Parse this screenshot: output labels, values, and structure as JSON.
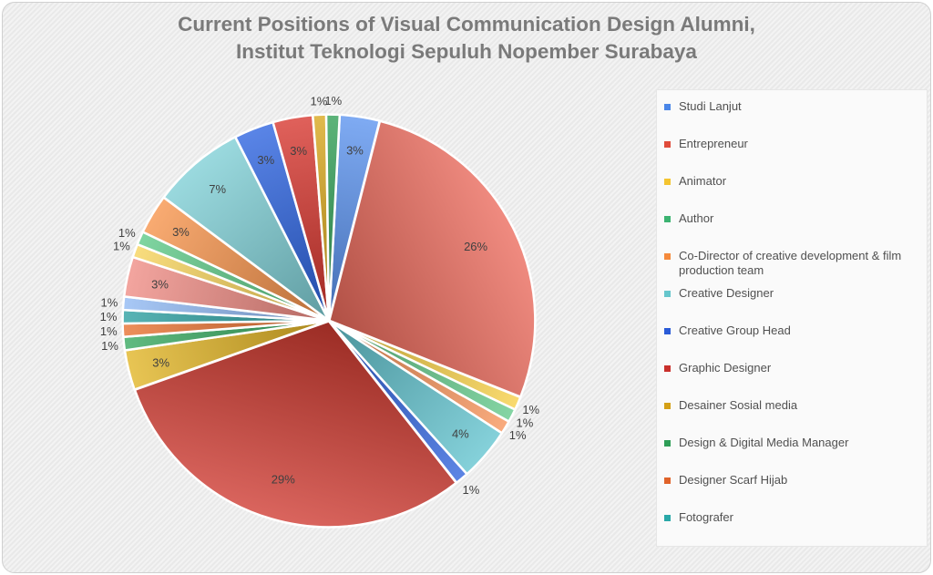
{
  "title_line1": "Current Positions of Visual Communication Design Alumni,",
  "title_line2": "Institut Teknologi Sepuluh Nopember Surabaya",
  "chart_data": {
    "type": "pie",
    "title": "Current Positions of Visual Communication Design Alumni, Institut Teknologi Sepuluh Nopember Surabaya",
    "legend_position": "right",
    "legend": [
      {
        "label": "Studi Lanjut",
        "color": "#4a86e8"
      },
      {
        "label": "Entrepreneur",
        "color": "#e04b3a"
      },
      {
        "label": "Animator",
        "color": "#f4c430"
      },
      {
        "label": "Author",
        "color": "#3cb371"
      },
      {
        "label": "Co-Director of creative development & film production team",
        "color": "#f58a3c"
      },
      {
        "label": "Creative Designer",
        "color": "#66c6cc"
      },
      {
        "label": "Creative Group Head",
        "color": "#2a5bd7"
      },
      {
        "label": "Graphic Designer",
        "color": "#c9302c"
      },
      {
        "label": "Desainer Sosial media",
        "color": "#d4a017"
      },
      {
        "label": "Design & Digital Media Manager",
        "color": "#2e9e57"
      },
      {
        "label": "Designer Scarf Hijab",
        "color": "#e0632a"
      },
      {
        "label": "Fotografer",
        "color": "#2aa8a8"
      }
    ],
    "slices": [
      {
        "value": 3,
        "label": "3%",
        "color": "#5b93f0"
      },
      {
        "value": 26,
        "label": "26%",
        "color": "#ec6a5c"
      },
      {
        "value": 1,
        "label": "1%",
        "color": "#f7d046"
      },
      {
        "value": 1,
        "label": "1%",
        "color": "#63c98a"
      },
      {
        "value": 1,
        "label": "1%",
        "color": "#f7935a"
      },
      {
        "value": 4,
        "label": "4%",
        "color": "#62c4cf"
      },
      {
        "value": 1,
        "label": "1%",
        "color": "#2f62dc"
      },
      {
        "value": 29,
        "label": "29%",
        "color": "#cf3a30"
      },
      {
        "value": 3,
        "label": "3%",
        "color": "#e2b424"
      },
      {
        "value": 1,
        "label": "1%",
        "color": "#34a85e"
      },
      {
        "value": 1,
        "label": "1%",
        "color": "#e8702e"
      },
      {
        "value": 1,
        "label": "1%",
        "color": "#2a9fa0"
      },
      {
        "value": 1,
        "label": "1%",
        "color": "#8fb8f3"
      },
      {
        "value": 3,
        "label": "3%",
        "color": "#f08c84"
      },
      {
        "value": 1,
        "label": "1%",
        "color": "#f7d35a"
      },
      {
        "value": 1,
        "label": "1%",
        "color": "#5cc987"
      },
      {
        "value": 3,
        "label": "3%",
        "color": "#f7934a"
      },
      {
        "value": 7,
        "label": "7%",
        "color": "#7fd0d6"
      },
      {
        "value": 3,
        "label": "3%",
        "color": "#2b63e0"
      },
      {
        "value": 3,
        "label": "3%",
        "color": "#d7352d"
      },
      {
        "value": 1,
        "label": "1%",
        "color": "#d9a71b"
      },
      {
        "value": 1,
        "label": "1%",
        "color": "#2f9f55"
      }
    ]
  }
}
